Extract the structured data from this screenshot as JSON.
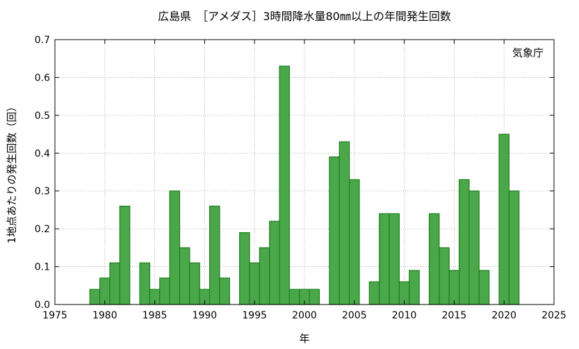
{
  "chart_data": {
    "type": "bar",
    "title": "広島県　［アメダス］3時間降水量80㎜以上の年間発生回数",
    "xlabel": "年",
    "ylabel": "1地点あたりの発生回数（回）",
    "annotation": "気象庁",
    "xlim": [
      1975,
      2025
    ],
    "ylim": [
      0,
      0.7
    ],
    "xticks": [
      1975,
      1980,
      1985,
      1990,
      1995,
      2000,
      2005,
      2010,
      2015,
      2020,
      2025
    ],
    "yticks": [
      0.0,
      0.1,
      0.2,
      0.3,
      0.4,
      0.5,
      0.6,
      0.7
    ],
    "grid": true,
    "bar_fill": "#4aa84a",
    "bar_stroke": "#1e7d1e",
    "x": [
      1979,
      1980,
      1981,
      1982,
      1983,
      1984,
      1985,
      1986,
      1987,
      1988,
      1989,
      1990,
      1991,
      1992,
      1993,
      1994,
      1995,
      1996,
      1997,
      1998,
      1999,
      2000,
      2001,
      2002,
      2003,
      2004,
      2005,
      2006,
      2007,
      2008,
      2009,
      2010,
      2011,
      2012,
      2013,
      2014,
      2015,
      2016,
      2017,
      2018,
      2019,
      2020,
      2021,
      2022
    ],
    "values": [
      0.04,
      0.07,
      0.11,
      0.26,
      0,
      0.11,
      0.04,
      0.07,
      0.3,
      0.15,
      0.11,
      0.04,
      0.26,
      0.07,
      0,
      0.19,
      0.11,
      0.15,
      0.22,
      0.63,
      0.04,
      0.04,
      0.04,
      0,
      0.39,
      0.43,
      0.33,
      0,
      0.06,
      0.24,
      0.24,
      0.06,
      0.09,
      0,
      0.24,
      0.15,
      0.09,
      0.33,
      0.3,
      0.09,
      0,
      0.45,
      0.3,
      0
    ]
  }
}
